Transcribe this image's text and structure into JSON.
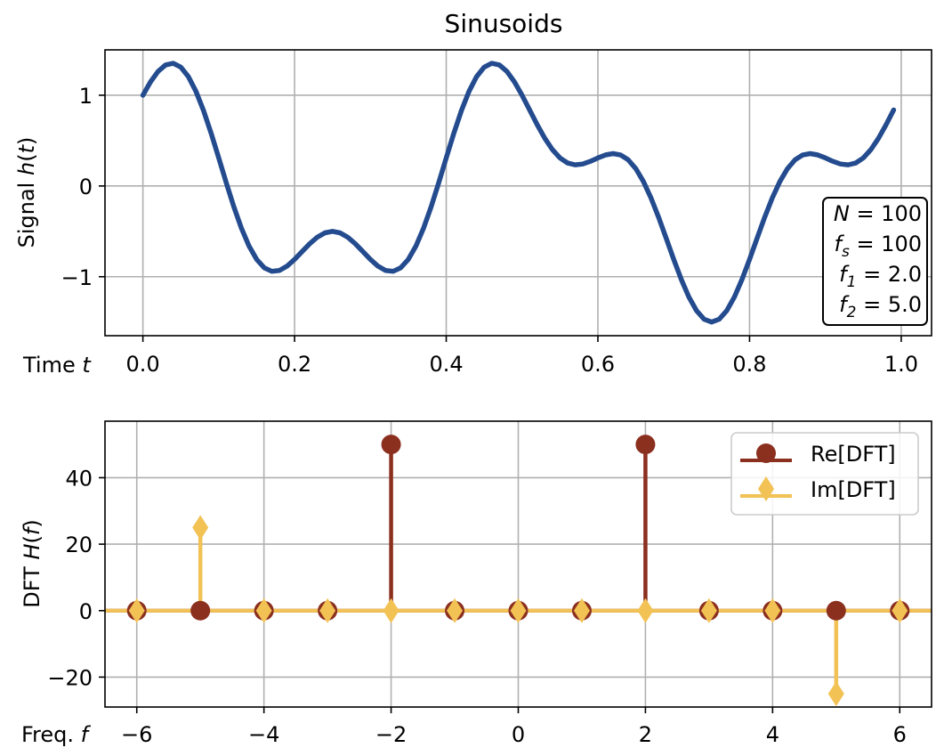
{
  "chart_data": [
    {
      "type": "line",
      "title": "Sinusoids",
      "xlabel": "Time t",
      "ylabel": "Signal h(t)",
      "xlim": [
        -0.05,
        1.04
      ],
      "ylim": [
        -1.65,
        1.5
      ],
      "xticks": [
        "0.0",
        "0.2",
        "0.4",
        "0.6",
        "0.8",
        "1.0"
      ],
      "xtick_values": [
        0.0,
        0.2,
        0.4,
        0.6,
        0.8,
        1.0
      ],
      "yticks": [
        "1",
        "0",
        "−1"
      ],
      "ytick_values": [
        1,
        0,
        -1
      ],
      "grid": true,
      "color": "#234b8e",
      "series": [
        {
          "formula": "cos(2π·2t) + 0.5·sin(2π·5t)",
          "x_start": 0.0,
          "x_end": 0.99,
          "x_step": 0.01
        }
      ],
      "annotation": {
        "lines": [
          {
            "var": "N",
            "sub": "",
            "value": "100"
          },
          {
            "var": "f",
            "sub": "s",
            "value": "100"
          },
          {
            "var": "f",
            "sub": "1",
            "value": "2.0"
          },
          {
            "var": "f",
            "sub": "2",
            "value": "5.0"
          }
        ],
        "placement": "lower-right"
      }
    },
    {
      "type": "stem",
      "title": "",
      "xlabel": "Freq. f",
      "ylabel": "DFT H(f)",
      "xlim": [
        -6.5,
        6.5
      ],
      "ylim": [
        -29,
        57
      ],
      "xticks": [
        "−6",
        "−4",
        "−2",
        "0",
        "2",
        "4",
        "6"
      ],
      "xtick_values": [
        -6,
        -4,
        -2,
        0,
        2,
        4,
        6
      ],
      "yticks": [
        "40",
        "20",
        "0",
        "−20"
      ],
      "ytick_values": [
        40,
        20,
        0,
        -20
      ],
      "grid": true,
      "legend": "top-right",
      "x": [
        -6,
        -5,
        -4,
        -3,
        -2,
        -1,
        0,
        1,
        2,
        3,
        4,
        5,
        6
      ],
      "series": [
        {
          "name": "Re[DFT]",
          "marker": "circle",
          "color": "#8b2f1f",
          "values": [
            0,
            0,
            0,
            0,
            50,
            0,
            0,
            0,
            50,
            0,
            0,
            0,
            0
          ]
        },
        {
          "name": "Im[DFT]",
          "marker": "diamond",
          "color": "#f2c254",
          "values": [
            0,
            25,
            0,
            0,
            0,
            0,
            0,
            0,
            0,
            0,
            0,
            -25,
            0
          ]
        }
      ]
    }
  ]
}
